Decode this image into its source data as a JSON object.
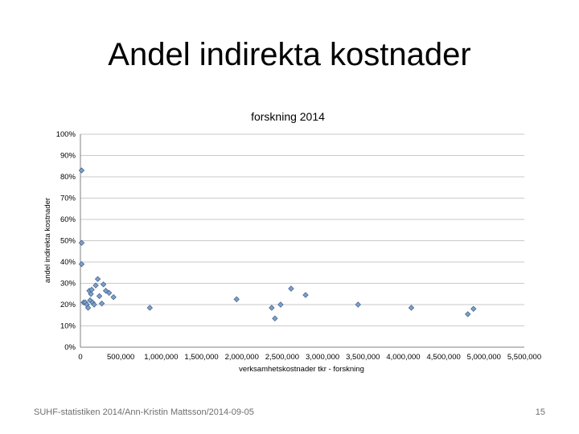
{
  "slide": {
    "title": "Andel indirekta kostnader",
    "footer_source": "SUHF-statistiken 2014/Ann-Kristin Mattsson/2014-09-05",
    "page_number": "15"
  },
  "chart_data": {
    "type": "scatter",
    "title": "forskning 2014",
    "xlabel": "verksamhetskostnader tkr - forskning",
    "ylabel": "andel indirekta kostnader",
    "xlim": [
      0,
      5500000
    ],
    "ylim": [
      0,
      1.0
    ],
    "x_ticks": [
      0,
      500000,
      1000000,
      1500000,
      2000000,
      2500000,
      3000000,
      3500000,
      4000000,
      4500000,
      5000000,
      5500000
    ],
    "x_tick_labels": [
      "0",
      "500,000",
      "1,000,000",
      "1,500,000",
      "2,000,000",
      "2,500,000",
      "3,000,000",
      "3,500,000",
      "4,000,000",
      "4,500,000",
      "5,000,000",
      "5,500,000"
    ],
    "y_ticks": [
      0,
      0.1,
      0.2,
      0.3,
      0.4,
      0.5,
      0.6,
      0.7,
      0.8,
      0.9,
      1.0
    ],
    "y_tick_labels": [
      "0%",
      "10%",
      "20%",
      "30%",
      "40%",
      "50%",
      "60%",
      "70%",
      "80%",
      "90%",
      "100%"
    ],
    "grid": "horizontal",
    "marker_color": "#7f9fc8",
    "marker_edge_color": "#3b5f8f",
    "points": [
      {
        "x": 15000,
        "y": 0.83
      },
      {
        "x": 15000,
        "y": 0.49
      },
      {
        "x": 15000,
        "y": 0.39
      },
      {
        "x": 40000,
        "y": 0.21
      },
      {
        "x": 60000,
        "y": 0.21
      },
      {
        "x": 80000,
        "y": 0.2
      },
      {
        "x": 95000,
        "y": 0.185
      },
      {
        "x": 110000,
        "y": 0.265
      },
      {
        "x": 120000,
        "y": 0.22
      },
      {
        "x": 130000,
        "y": 0.25
      },
      {
        "x": 140000,
        "y": 0.27
      },
      {
        "x": 150000,
        "y": 0.21
      },
      {
        "x": 170000,
        "y": 0.2
      },
      {
        "x": 190000,
        "y": 0.29
      },
      {
        "x": 215000,
        "y": 0.32
      },
      {
        "x": 235000,
        "y": 0.24
      },
      {
        "x": 265000,
        "y": 0.205
      },
      {
        "x": 285000,
        "y": 0.295
      },
      {
        "x": 315000,
        "y": 0.265
      },
      {
        "x": 355000,
        "y": 0.255
      },
      {
        "x": 410000,
        "y": 0.235
      },
      {
        "x": 860000,
        "y": 0.185
      },
      {
        "x": 1935000,
        "y": 0.225
      },
      {
        "x": 2370000,
        "y": 0.185
      },
      {
        "x": 2410000,
        "y": 0.135
      },
      {
        "x": 2480000,
        "y": 0.2
      },
      {
        "x": 2610000,
        "y": 0.275
      },
      {
        "x": 2790000,
        "y": 0.245
      },
      {
        "x": 3440000,
        "y": 0.2
      },
      {
        "x": 4100000,
        "y": 0.185
      },
      {
        "x": 4800000,
        "y": 0.155
      },
      {
        "x": 4870000,
        "y": 0.18
      }
    ]
  }
}
